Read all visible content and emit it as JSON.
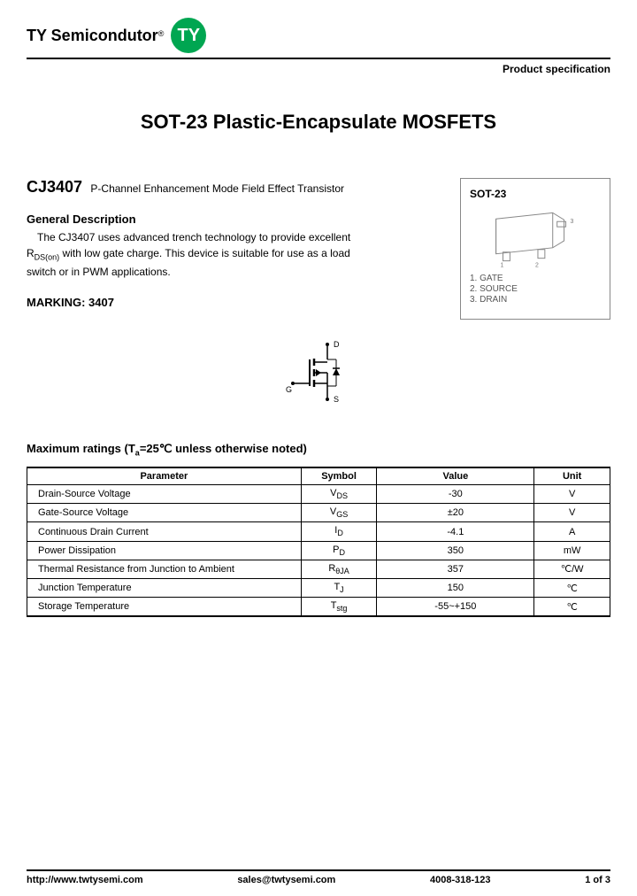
{
  "header": {
    "brand": "TY Semicondutor",
    "brand_sup": "®",
    "logo_text": "TY",
    "spec_label": "Product specification"
  },
  "title": "SOT-23 Plastic-Encapsulate MOSFETS",
  "part": {
    "number": "CJ3407",
    "subtitle": "P-Channel Enhancement Mode Field Effect Transistor"
  },
  "description": {
    "heading": "General Description",
    "line1a": "The CJ3407 uses advanced trench technology to provide excellent",
    "line1b_pre": "R",
    "line1b_sub": "DS(on)",
    "line1b_post": " with low gate charge. This device is suitable for use as a load",
    "line2": "switch or in PWM applications."
  },
  "marking": "MARKING: 3407",
  "package": {
    "title": "SOT-23",
    "pins": [
      "1. GATE",
      "2. SOURCE",
      "3. DRAIN"
    ]
  },
  "schematic": {
    "d": "D",
    "g": "G",
    "s": "S"
  },
  "ratings": {
    "heading_pre": "Maximum ratings (T",
    "heading_sub": "a",
    "heading_post": "=25℃ unless otherwise noted)",
    "columns": [
      "Parameter",
      "Symbol",
      "Value",
      "Unit"
    ],
    "rows": [
      {
        "p": "Drain-Source Voltage",
        "sym": "V",
        "sub": "DS",
        "v": "-30",
        "u": "V"
      },
      {
        "p": "Gate-Source Voltage",
        "sym": "V",
        "sub": "GS",
        "v": "±20",
        "u": "V"
      },
      {
        "p": "Continuous Drain Current",
        "sym": "I",
        "sub": "D",
        "v": "-4.1",
        "u": "A"
      },
      {
        "p": "Power Dissipation",
        "sym": "P",
        "sub": "D",
        "v": "350",
        "u": "mW"
      },
      {
        "p": "Thermal Resistance from Junction to Ambient",
        "sym": "R",
        "sub": "θJA",
        "v": "357",
        "u": "℃/W"
      },
      {
        "p": "Junction Temperature",
        "sym": "T",
        "sub": "J",
        "v": "150",
        "u": "℃"
      },
      {
        "p": "Storage Temperature",
        "sym": "T",
        "sub": "stg",
        "v": "-55~+150",
        "u": "℃"
      }
    ]
  },
  "footer": {
    "url": "http://www.twtysemi.com",
    "email": "sales@twtysemi.com",
    "phone": "4008-318-123",
    "page": "1 of 3"
  }
}
